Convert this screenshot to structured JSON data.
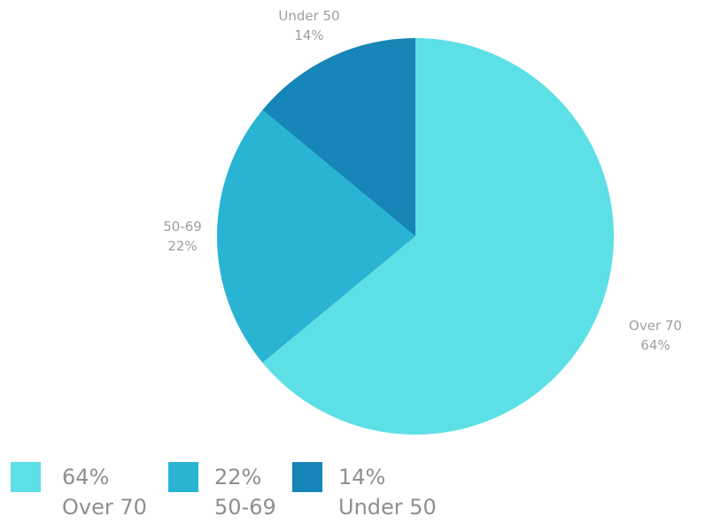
{
  "chart_data": {
    "type": "pie",
    "start_angle_deg": 0,
    "direction": "clockwise",
    "slices": [
      {
        "label": "Over 70",
        "percent": "64%",
        "value": 64,
        "color": "#5ce0e6"
      },
      {
        "label": "50-69",
        "percent": "22%",
        "value": 22,
        "color": "#2ab4d4"
      },
      {
        "label": "Under 50",
        "percent": "14%",
        "value": 14,
        "color": "#1685b7"
      }
    ],
    "legend_position": "bottom-left"
  },
  "colors": {
    "label_text": "#9e9e9e",
    "legend_text": "#8f8f8f",
    "background": "#ffffff"
  }
}
